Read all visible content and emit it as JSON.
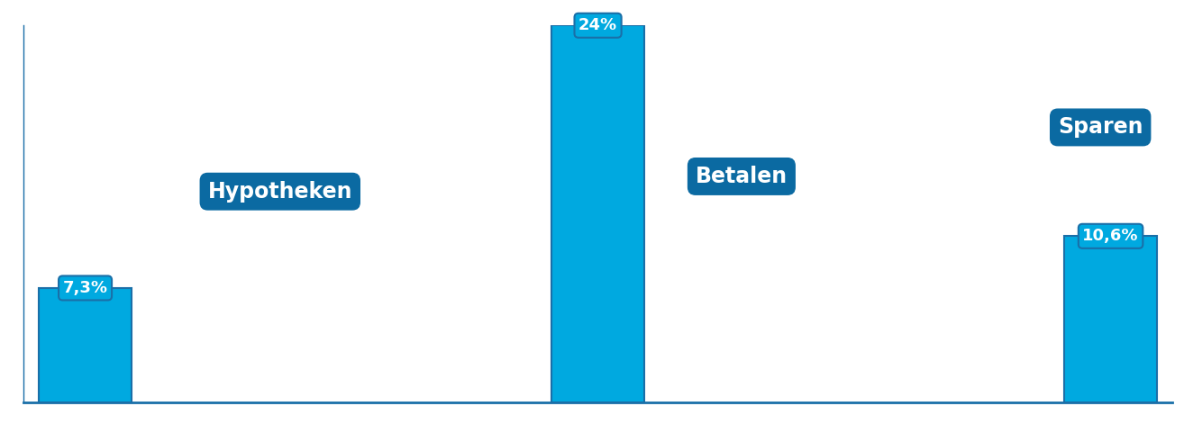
{
  "chart_data": {
    "type": "bar",
    "categories": [
      "Hypotheken",
      "Betalen",
      "Sparen"
    ],
    "values": [
      7.3,
      24,
      10.6
    ],
    "value_labels": [
      "7,3%",
      "24%",
      "10,6%"
    ],
    "color": "#00a9e0",
    "ylim": [
      0,
      24
    ],
    "data_labels": true,
    "tick_labels": false
  }
}
